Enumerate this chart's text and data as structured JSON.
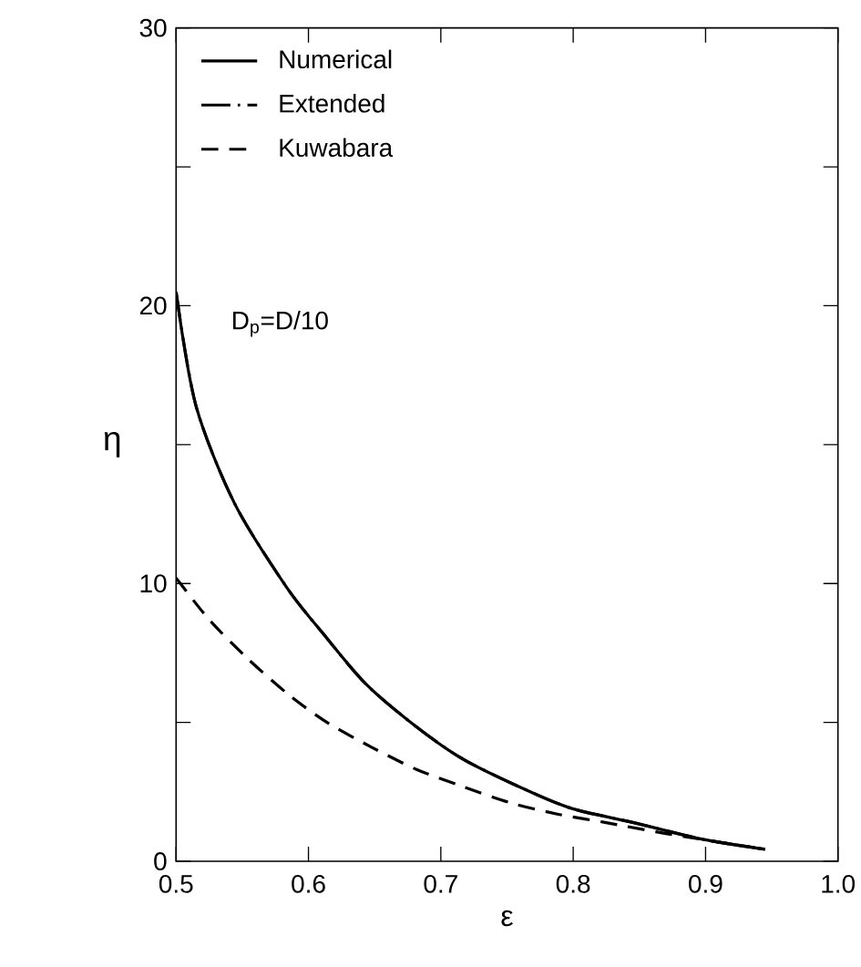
{
  "chart_data": {
    "type": "line",
    "xlabel": "ε",
    "ylabel": "η",
    "annotations": [
      {
        "text": "D$_{p}$=D/10"
      }
    ],
    "xlim": [
      0.5,
      1.0
    ],
    "ylim": [
      0,
      30
    ],
    "xticks": [
      0.5,
      0.6,
      0.7,
      0.8,
      0.9,
      {
        "value": 1.0,
        "label": "1.0"
      }
    ],
    "yticks": [
      0,
      {
        "value": 5,
        "label": null
      },
      10,
      {
        "value": 15,
        "label": null
      },
      20,
      {
        "value": 25,
        "label": null
      },
      30
    ],
    "legend": "top left",
    "grid": false,
    "series": [
      {
        "name": "Numerical",
        "color": "#000000",
        "line_style": "solid",
        "x": [
          0.5,
          0.515,
          0.544,
          0.583,
          0.611,
          0.643,
          0.68,
          0.716,
          0.763,
          0.799,
          0.845,
          0.897,
          0.945
        ],
        "values": [
          20.5,
          16.4,
          12.9,
          9.9,
          8.2,
          6.4,
          4.9,
          3.7,
          2.6,
          1.9,
          1.4,
          0.8,
          0.43
        ]
      },
      {
        "name": "Extended",
        "color": "#000000",
        "line_style": "dashdot",
        "x": [
          0.5,
          0.515,
          0.544,
          0.583,
          0.611,
          0.643,
          0.68,
          0.716,
          0.763,
          0.799,
          0.845,
          0.897,
          0.945
        ],
        "values": [
          20.5,
          16.4,
          12.9,
          9.9,
          8.2,
          6.4,
          4.9,
          3.7,
          2.6,
          1.9,
          1.4,
          0.8,
          0.43
        ]
      },
      {
        "name": "Kuwabara",
        "color": "#000000",
        "line_style": "dashed",
        "x": [
          0.5,
          0.525,
          0.554,
          0.585,
          0.614,
          0.648,
          0.682,
          0.716,
          0.753,
          0.788,
          0.824,
          0.87,
          0.945
        ],
        "values": [
          10.2,
          8.7,
          7.3,
          6.0,
          5.0,
          4.1,
          3.3,
          2.7,
          2.1,
          1.7,
          1.4,
          1.0,
          0.43
        ]
      }
    ]
  }
}
